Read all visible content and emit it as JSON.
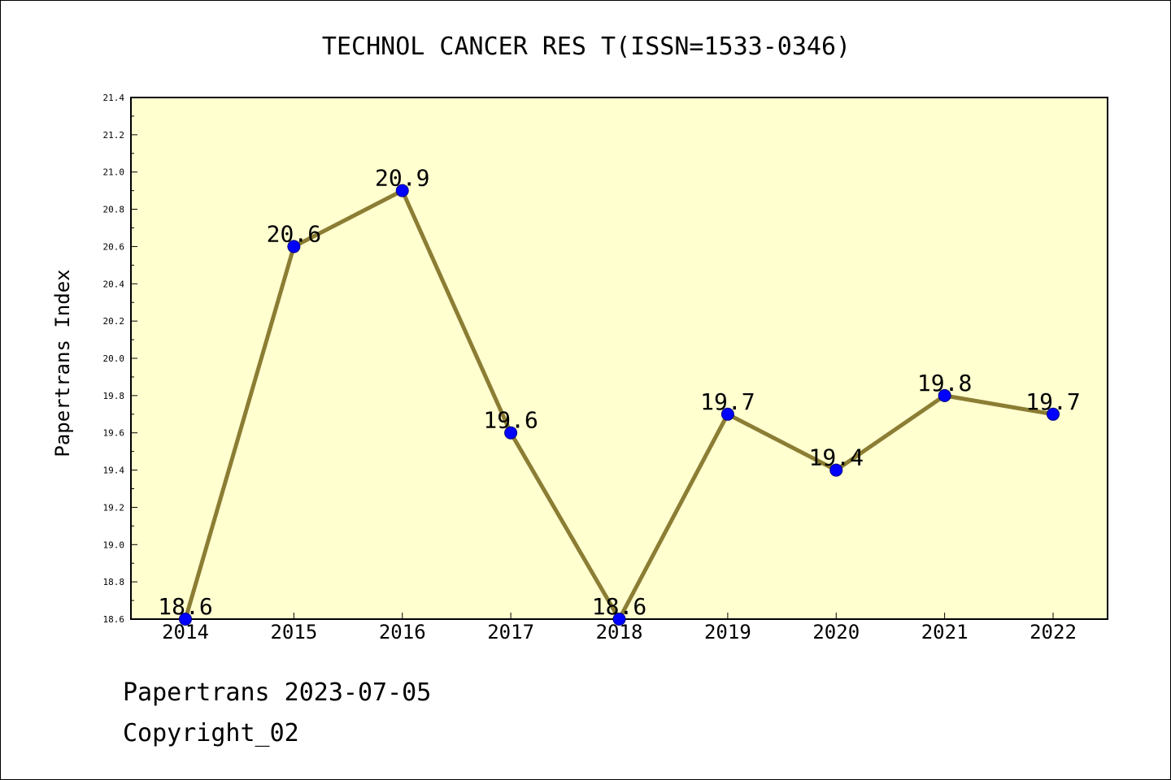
{
  "chart_data": {
    "type": "line",
    "title": "TECHNOL CANCER RES T(ISSN=1533-0346)",
    "xlabel": "",
    "ylabel": "Papertrans Index",
    "categories": [
      "2014",
      "2015",
      "2016",
      "2017",
      "2018",
      "2019",
      "2020",
      "2021",
      "2022"
    ],
    "series": [
      {
        "values": [
          18.6,
          20.6,
          20.9,
          19.6,
          18.6,
          19.7,
          19.4,
          19.8,
          19.7
        ],
        "data_labels": [
          "18.6",
          "20.6",
          "20.9",
          "19.6",
          "18.6",
          "19.7",
          "19.4",
          "19.8",
          "19.7"
        ]
      }
    ],
    "ylim": [
      18.6,
      21.4
    ],
    "yticks": [
      "18.6",
      "18.8",
      "19.0",
      "19.2",
      "19.4",
      "19.6",
      "19.8",
      "20.0",
      "20.2",
      "20.4",
      "20.6",
      "20.8",
      "21.0",
      "21.2",
      "21.4"
    ],
    "grid": false,
    "colors": {
      "plot_background": "#ffffd0",
      "line": "#8b7d33",
      "marker": "#0000ff",
      "marker_edge": "#000080"
    }
  },
  "footer": {
    "line1": "Papertrans 2023-07-05",
    "line2": "Copyright_02"
  }
}
